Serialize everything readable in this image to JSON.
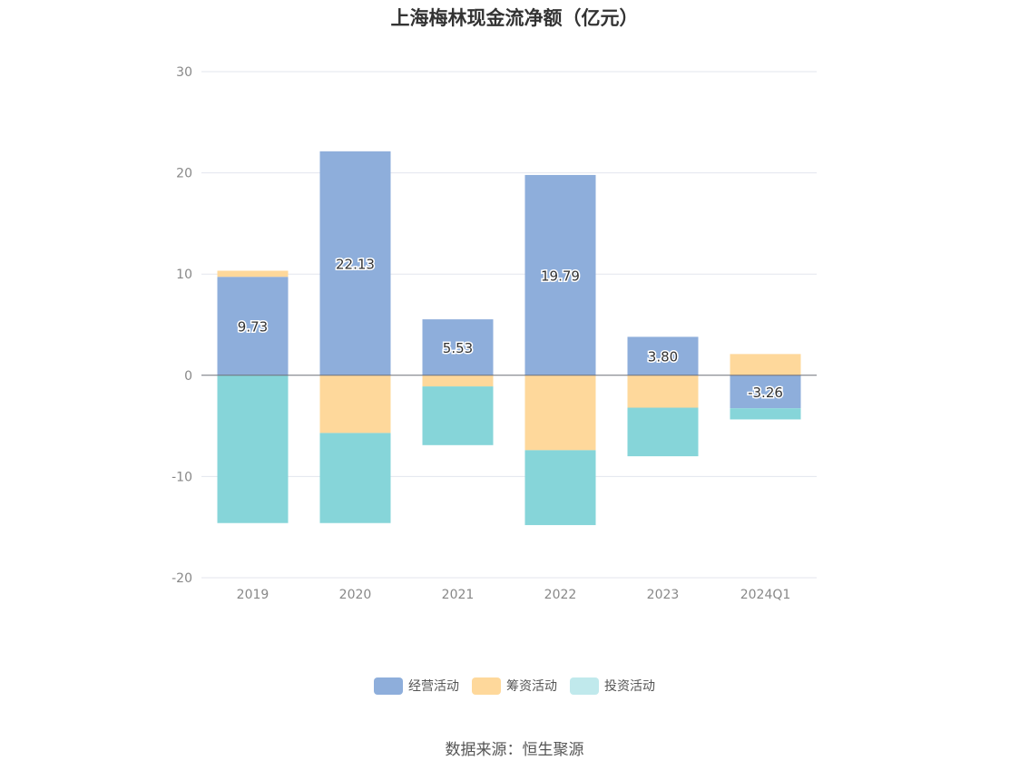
{
  "chart_data": {
    "type": "bar",
    "stacked": true,
    "title": "上海梅林现金流净额（亿元）",
    "categories": [
      "2019",
      "2020",
      "2021",
      "2022",
      "2023",
      "2024Q1"
    ],
    "series": [
      {
        "name": "经营活动",
        "color": "#8eaedb",
        "values": [
          9.73,
          22.13,
          5.53,
          19.79,
          3.8,
          -3.26
        ],
        "show_labels": true
      },
      {
        "name": "筹资活动",
        "color": "#fed89b",
        "values": [
          0.6,
          -5.7,
          -1.1,
          -7.4,
          -3.2,
          2.1
        ],
        "show_labels": false
      },
      {
        "name": "投资活动",
        "color": "#86d5d9",
        "values": [
          -14.6,
          -8.9,
          -5.8,
          -7.4,
          -4.8,
          -1.1
        ],
        "show_labels": false
      }
    ],
    "ylim": [
      -20,
      30
    ],
    "yticks": [
      30,
      20,
      10,
      0,
      -10,
      -20
    ],
    "grid": true,
    "legend_position": "bottom"
  },
  "legend": [
    {
      "label": "经营活动",
      "color": "#8eaedb"
    },
    {
      "label": "筹资活动",
      "color": "#fed89b"
    },
    {
      "label": "投资活动",
      "color": "#c0e9ec"
    }
  ],
  "source": "数据来源：恒生聚源"
}
